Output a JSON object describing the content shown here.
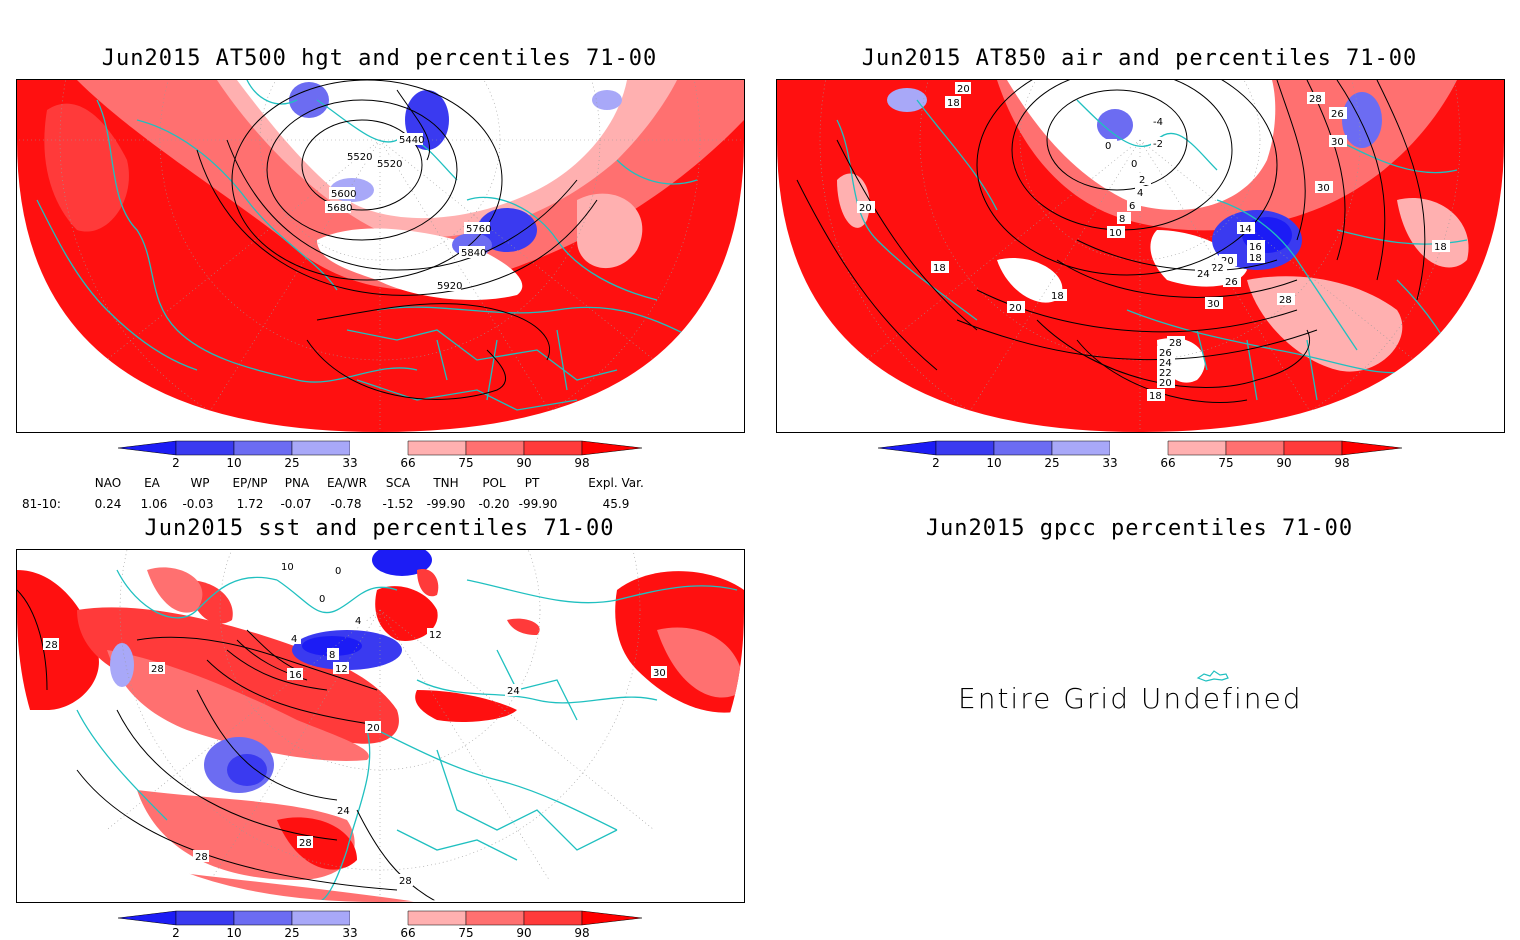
{
  "panels": {
    "hgt": {
      "title": "Jun2015 AT500 hgt and percentiles 71-00",
      "contour_labels": [
        "5440",
        "5520",
        "5520",
        "5600",
        "5680",
        "5760",
        "5840",
        "5920"
      ]
    },
    "air": {
      "title": "Jun2015 AT850 air and percentiles 71-00",
      "contour_labels": [
        "20",
        "18",
        "-4",
        "-2",
        "0",
        "0",
        "2",
        "4",
        "6",
        "8",
        "10",
        "14",
        "16",
        "18",
        "18",
        "20",
        "22",
        "24",
        "26",
        "28",
        "30",
        "30",
        "26",
        "28",
        "30",
        "18",
        "18",
        "20",
        "20",
        "28",
        "26",
        "24",
        "22",
        "20",
        "18"
      ]
    },
    "sst": {
      "title": "Jun2015 sst and percentiles 71-00",
      "contour_labels": [
        "28",
        "28",
        "4",
        "8",
        "12",
        "16",
        "20",
        "24",
        "28",
        "28",
        "28",
        "0",
        "0",
        "10",
        "4",
        "12",
        "24",
        "20"
      ]
    },
    "gpcc": {
      "title": "Jun2015 gpcc percentiles 71-00",
      "undefined_text": "Entire Grid Undefined"
    }
  },
  "colorbar": {
    "labels": [
      "2",
      "10",
      "25",
      "33",
      "66",
      "75",
      "90",
      "98"
    ],
    "colors": [
      "#1c1cf5",
      "#3a3af0",
      "#6c6cf2",
      "#a8a8f8",
      "#ffffff",
      "#ffb0b0",
      "#ff7070",
      "#ff3a3a",
      "#ff0000"
    ]
  },
  "indices": {
    "headers": [
      "NAO",
      "EA",
      "WP",
      "EP/NP",
      "PNA",
      "EA/WR",
      "SCA",
      "TNH",
      "POL",
      "PT",
      "Expl. Var."
    ],
    "row_label": "81-10:",
    "values": [
      "0.24",
      "1.06",
      "-0.03",
      "1.72",
      "-0.07",
      "-0.78",
      "-1.52",
      "-99.90",
      "-0.20",
      "-99.90",
      "45.9"
    ]
  }
}
